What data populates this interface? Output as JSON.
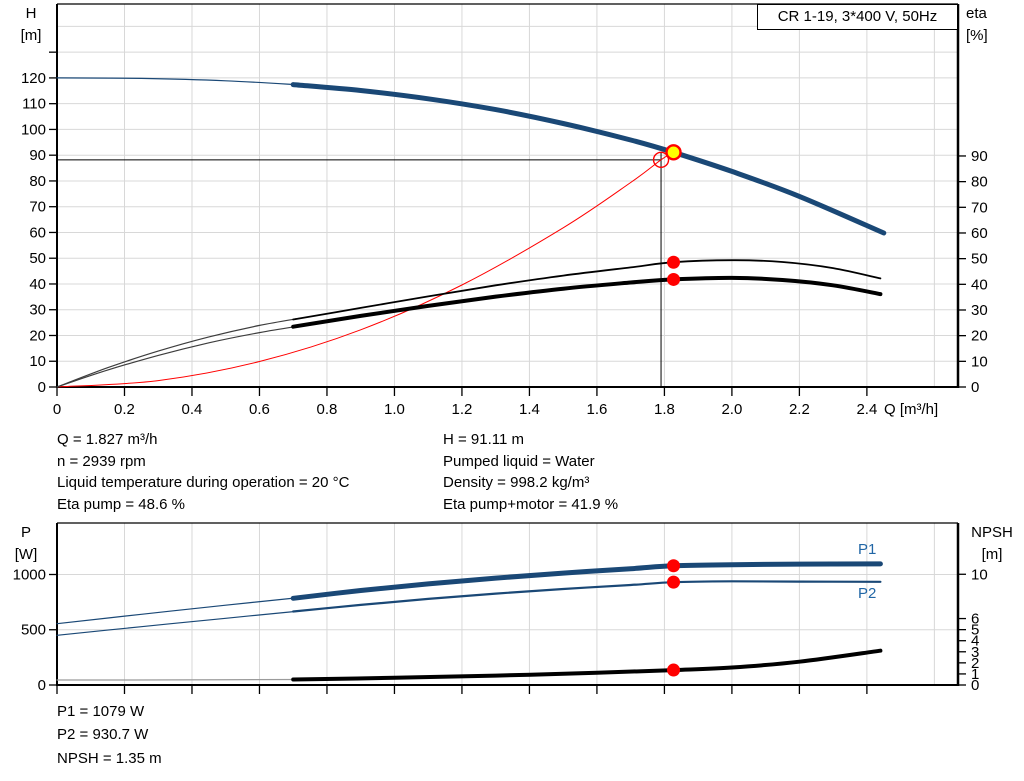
{
  "title_box": {
    "label": "CR 1-19, 3*400 V, 50Hz"
  },
  "top_info": {
    "left": [
      "Q = 1.827 m³/h",
      "n = 2939 rpm",
      "Liquid temperature during operation = 20 °C",
      "Eta pump = 48.6 %"
    ],
    "right": [
      "H = 91.11 m",
      "Pumped liquid = Water",
      "Density = 998.2 kg/m³",
      "Eta pump+motor = 41.9 %"
    ]
  },
  "bottom_info": {
    "lines": [
      "P1 = 1079 W",
      "P2 = 930.7 W",
      "NPSH = 1.35 m"
    ]
  },
  "colors": {
    "curve_blue": "#1a4876",
    "label_blue": "#2166a5",
    "marker_red": "#ff0000",
    "duty_yellow": "#ffff00",
    "grid": "#d8d8d8",
    "axis": "#000000",
    "thin_gray": "#3d3d3d",
    "npsh_gray": "#9b9b9b"
  },
  "chart_data": [
    {
      "id": "head_eta",
      "type": "line",
      "title": "CR 1-19, 3*400 V, 50Hz",
      "x_axis": {
        "label": "Q [m³/h]",
        "min": 0,
        "max": 2.67,
        "labeled_ticks": [
          "0",
          "0.2",
          "0.4",
          "0.6",
          "0.8",
          "1.0",
          "1.2",
          "1.4",
          "1.6",
          "1.8",
          "2.0",
          "2.2",
          "2.4"
        ],
        "grid": [
          0.2,
          0.4,
          0.6,
          0.8,
          1.0,
          1.2,
          1.4,
          1.6,
          1.8,
          2.0,
          2.2,
          2.4,
          2.6
        ]
      },
      "y_left": {
        "label": "H",
        "unit": "[m]",
        "min": 0,
        "max": 148.7,
        "labeled_ticks": [
          0,
          10,
          20,
          30,
          40,
          50,
          60,
          70,
          80,
          90,
          100,
          110,
          120
        ],
        "unlabeled_ticks": [
          130
        ],
        "grid": [
          10,
          20,
          30,
          40,
          50,
          60,
          70,
          80,
          90,
          100,
          110,
          120,
          130,
          140
        ]
      },
      "y_right": {
        "label": "eta",
        "unit": "[%]",
        "min": 0,
        "max": 149.2,
        "labeled_ticks": [
          0,
          10,
          20,
          30,
          40,
          50,
          60,
          70,
          80,
          90
        ]
      },
      "duty_point": {
        "q": 1.827,
        "h": 91.11
      },
      "ref_point": {
        "q": 1.79,
        "h": 88.2
      },
      "series": [
        {
          "name": "head-low-flow",
          "axis": "left",
          "color": "#1a4876",
          "width": 1.2,
          "points": [
            [
              0,
              120
            ],
            [
              0.25,
              119.8
            ],
            [
              0.5,
              118.9
            ],
            [
              0.72,
              117.3
            ]
          ]
        },
        {
          "name": "head",
          "axis": "left",
          "color": "#1a4876",
          "width": 5,
          "points": [
            [
              0.7,
              117.4
            ],
            [
              0.9,
              115.1
            ],
            [
              1.1,
              111.9
            ],
            [
              1.3,
              107.7
            ],
            [
              1.5,
              102.3
            ],
            [
              1.7,
              95.9
            ],
            [
              1.827,
              91.11
            ],
            [
              2.0,
              83.7
            ],
            [
              2.2,
              74.0
            ],
            [
              2.45,
              59.8
            ]
          ]
        },
        {
          "name": "system-curve",
          "axis": "left",
          "color": "#ff0000",
          "width": 1,
          "points": [
            [
              0,
              0
            ],
            [
              0.3,
              2.5
            ],
            [
              0.6,
              9.9
            ],
            [
              0.9,
              22.2
            ],
            [
              1.2,
              39.6
            ],
            [
              1.5,
              61.8
            ],
            [
              1.7,
              79.4
            ],
            [
              1.79,
              88.2
            ],
            [
              1.827,
              91.11
            ]
          ]
        },
        {
          "name": "eta-pump-low-flow",
          "axis": "right",
          "color": "#3d3d3d",
          "width": 1.2,
          "points": [
            [
              0,
              0
            ],
            [
              0.15,
              7.5
            ],
            [
              0.3,
              14.0
            ],
            [
              0.45,
              19.5
            ],
            [
              0.6,
              24.0
            ],
            [
              0.72,
              26.8
            ]
          ]
        },
        {
          "name": "eta-pump",
          "axis": "right",
          "color": "#000000",
          "width": 1.8,
          "points": [
            [
              0.7,
              26.3
            ],
            [
              0.9,
              30.8
            ],
            [
              1.1,
              35.3
            ],
            [
              1.3,
              39.6
            ],
            [
              1.5,
              43.4
            ],
            [
              1.7,
              46.6
            ],
            [
              1.827,
              48.6
            ],
            [
              2.0,
              49.4
            ],
            [
              2.15,
              48.7
            ],
            [
              2.3,
              46.3
            ],
            [
              2.44,
              42.3
            ]
          ]
        },
        {
          "name": "eta-pump-motor-low-flow",
          "axis": "right",
          "color": "#3d3d3d",
          "width": 1.2,
          "points": [
            [
              0,
              0
            ],
            [
              0.15,
              6.6
            ],
            [
              0.3,
              12.3
            ],
            [
              0.45,
              17.2
            ],
            [
              0.6,
              21.2
            ],
            [
              0.72,
              23.8
            ]
          ]
        },
        {
          "name": "eta-pump-motor",
          "axis": "right",
          "color": "#000000",
          "width": 4,
          "points": [
            [
              0.7,
              23.5
            ],
            [
              0.9,
              27.7
            ],
            [
              1.1,
              31.6
            ],
            [
              1.3,
              35.2
            ],
            [
              1.5,
              38.3
            ],
            [
              1.7,
              40.7
            ],
            [
              1.827,
              41.9
            ],
            [
              2.0,
              42.5
            ],
            [
              2.15,
              41.7
            ],
            [
              2.3,
              39.6
            ],
            [
              2.44,
              36.2
            ]
          ]
        }
      ],
      "markers": [
        {
          "name": "duty-point-head",
          "axis": "left",
          "q": 1.827,
          "v": 91.11,
          "style": "yellow"
        },
        {
          "name": "duty-point-eta-pump",
          "axis": "right",
          "q": 1.827,
          "v": 48.6,
          "style": "red"
        },
        {
          "name": "duty-point-eta-pump-motor",
          "axis": "right",
          "q": 1.827,
          "v": 41.9,
          "style": "red"
        }
      ]
    },
    {
      "id": "power_npsh",
      "type": "line",
      "x_axis": {
        "min": 0,
        "max": 2.67,
        "labeled_ticks": [
          "0",
          "0.2",
          "0.4",
          "0.6",
          "0.8",
          "1.0",
          "1.2",
          "1.4",
          "1.6",
          "1.8",
          "2.0",
          "2.2",
          "2.4"
        ],
        "grid": [
          0.2,
          0.4,
          0.6,
          0.8,
          1.0,
          1.2,
          1.4,
          1.6,
          1.8,
          2.0,
          2.2,
          2.4,
          2.6
        ]
      },
      "y_left": {
        "label": "P",
        "unit": "[W]",
        "min": 0,
        "max": 1466,
        "labeled_ticks": [
          0,
          500,
          1000
        ],
        "grid": [
          500,
          1000
        ]
      },
      "y_right": {
        "label": "NPSH",
        "unit": "[m]",
        "min": 0,
        "max": 14.63,
        "labeled_ticks": [
          0,
          1,
          2,
          3,
          4,
          5,
          6,
          10
        ]
      },
      "series": [
        {
          "name": "p1-low-flow",
          "axis": "left",
          "color": "#1a4876",
          "width": 1.2,
          "points": [
            [
              0,
              555
            ],
            [
              0.25,
              640
            ],
            [
              0.5,
              722
            ],
            [
              0.72,
              792
            ]
          ]
        },
        {
          "name": "p1",
          "axis": "left",
          "color": "#1a4876",
          "width": 5,
          "label": "P1",
          "points": [
            [
              0.7,
              785
            ],
            [
              0.9,
              855
            ],
            [
              1.1,
              915
            ],
            [
              1.3,
              967
            ],
            [
              1.5,
              1013
            ],
            [
              1.7,
              1052
            ],
            [
              1.827,
              1079
            ],
            [
              2.0,
              1089
            ],
            [
              2.2,
              1094
            ],
            [
              2.44,
              1096
            ]
          ]
        },
        {
          "name": "p2-low-flow",
          "axis": "left",
          "color": "#1a4876",
          "width": 1.2,
          "points": [
            [
              0,
              450
            ],
            [
              0.25,
              528
            ],
            [
              0.5,
              604
            ],
            [
              0.72,
              670
            ]
          ]
        },
        {
          "name": "p2",
          "axis": "left",
          "color": "#1a4876",
          "width": 2.2,
          "label": "P2",
          "points": [
            [
              0.7,
              665
            ],
            [
              0.9,
              725
            ],
            [
              1.1,
              779
            ],
            [
              1.3,
              827
            ],
            [
              1.5,
              869
            ],
            [
              1.7,
              905
            ],
            [
              1.827,
              930.7
            ],
            [
              2.0,
              938
            ],
            [
              2.2,
              936
            ],
            [
              2.44,
              934
            ]
          ]
        },
        {
          "name": "npsh-low-flow",
          "axis": "right",
          "color": "#9b9b9b",
          "width": 1.2,
          "points": [
            [
              0,
              0.45
            ],
            [
              0.35,
              0.46
            ],
            [
              0.72,
              0.5
            ]
          ]
        },
        {
          "name": "npsh",
          "axis": "right",
          "color": "#000000",
          "width": 4,
          "points": [
            [
              0.7,
              0.5
            ],
            [
              1.0,
              0.65
            ],
            [
              1.3,
              0.85
            ],
            [
              1.6,
              1.1
            ],
            [
              1.827,
              1.35
            ],
            [
              2.0,
              1.58
            ],
            [
              2.2,
              2.1
            ],
            [
              2.44,
              3.1
            ]
          ]
        }
      ],
      "markers": [
        {
          "name": "duty-point-p1",
          "axis": "left",
          "q": 1.827,
          "v": 1079,
          "style": "red"
        },
        {
          "name": "duty-point-p2",
          "axis": "left",
          "q": 1.827,
          "v": 930.7,
          "style": "red"
        },
        {
          "name": "duty-point-npsh",
          "axis": "right",
          "q": 1.827,
          "v": 1.35,
          "style": "red"
        }
      ]
    }
  ]
}
